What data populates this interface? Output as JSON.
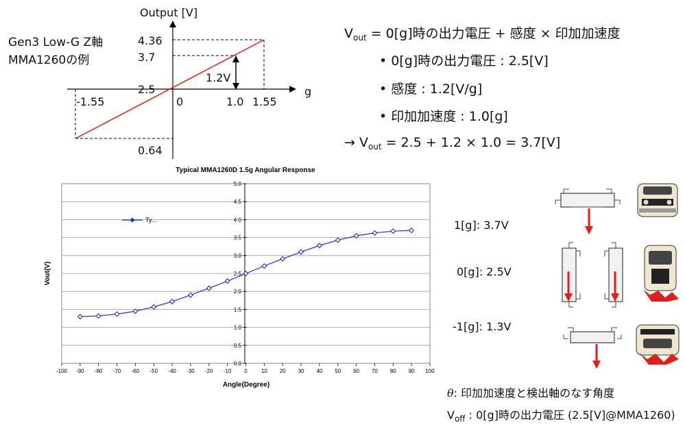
{
  "top_graph": {
    "title": "Gen3 Low-G Z軸",
    "subtitle": "MMA1260の例",
    "y_axis_label": "Output [V]",
    "x_axis_label": "g",
    "y_ticks": [
      "4.36",
      "3.7",
      "2.5",
      "0.64"
    ],
    "x_ticks": [
      "-1.55",
      "0",
      "1.0",
      "1.55"
    ],
    "delta_label": "1.2V",
    "line_color": "#e0201a"
  },
  "formula": {
    "v_main": "V",
    "v_sub": "out",
    "main_rest": " = 0[g]時の出力電圧 + 感度 × 印加加速度",
    "bullet1": "• 0[g]時の出力電圧 : 2.5[V]",
    "bullet2": "• 感度 : 1.2[V/g]",
    "bullet3": "• 印加加速度 : 1.0[g]",
    "result_prefix": "→ V",
    "result_sub": "out",
    "result_rest": " = 2.5 + 1.2 × 1.0 = 3.7[V]"
  },
  "chart_data": {
    "type": "line",
    "title": "Typical MMA1260D 1.5g Angular Response",
    "xlabel": "Angle(Degree)",
    "ylabel": "Vout(V)",
    "xlim": [
      -100,
      100
    ],
    "ylim": [
      0,
      5
    ],
    "x_ticks": [
      "-100",
      "-90",
      "-80",
      "-70",
      "-60",
      "-50",
      "-40",
      "-30",
      "-20",
      "-10",
      "0",
      "10",
      "20",
      "30",
      "40",
      "50",
      "60",
      "70",
      "80",
      "90",
      "100"
    ],
    "y_ticks": [
      "0.0",
      "0.5",
      "1.0",
      "1.5",
      "2.0",
      "2.5",
      "3.0",
      "3.5",
      "4.0",
      "4.5",
      "5.0"
    ],
    "grid": true,
    "legend_position": "top-left",
    "series": [
      {
        "name": "Ty...",
        "color": "#1f2fd0",
        "x": [
          -90,
          -80,
          -70,
          -60,
          -50,
          -40,
          -30,
          -20,
          -10,
          0,
          10,
          20,
          30,
          40,
          50,
          60,
          70,
          80,
          90
        ],
        "values": [
          1.3,
          1.32,
          1.37,
          1.45,
          1.57,
          1.72,
          1.9,
          2.09,
          2.29,
          2.5,
          2.71,
          2.91,
          3.1,
          3.28,
          3.43,
          3.55,
          3.63,
          3.68,
          3.7
        ]
      }
    ]
  },
  "orientations": {
    "label_1g": "1[g]: 3.7V",
    "label_0g": "0[g]: 2.5V",
    "label_m1g": "-1[g]: 1.3V",
    "arrow_color": "#e0201a"
  },
  "notes": {
    "theta_symbol": "θ",
    "theta_text": ":  印加加速度と検出軸のなす角度",
    "voff_main": "V",
    "voff_sub": "off",
    "voff_text": " : 0[g]時の出力電圧 (2.5[V]@MMA1260)"
  }
}
